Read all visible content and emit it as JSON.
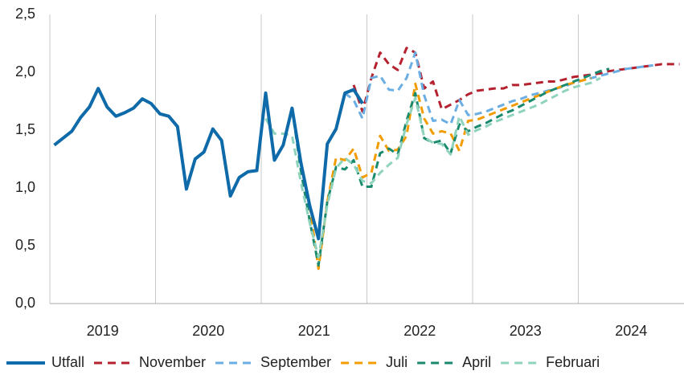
{
  "chart_data": {
    "type": "line",
    "x": [
      2019.042,
      2019.125,
      2019.208,
      2019.292,
      2019.375,
      2019.458,
      2019.542,
      2019.625,
      2019.708,
      2019.792,
      2019.875,
      2019.958,
      2020.042,
      2020.125,
      2020.208,
      2020.292,
      2020.375,
      2020.458,
      2020.542,
      2020.625,
      2020.708,
      2020.792,
      2020.875,
      2020.958,
      2021.042,
      2021.125,
      2021.208,
      2021.292,
      2021.375,
      2021.458,
      2021.542,
      2021.625,
      2021.708,
      2021.792,
      2021.875,
      2021.958,
      2022.042,
      2022.125,
      2022.208,
      2022.292,
      2022.375,
      2022.458,
      2022.542,
      2022.625,
      2022.708,
      2022.792,
      2022.875,
      2022.958,
      2023.042,
      2023.125,
      2023.208,
      2023.292,
      2023.375,
      2023.458,
      2023.542,
      2023.625,
      2023.708,
      2023.792,
      2023.875,
      2023.958,
      2024.042,
      2024.125,
      2024.208,
      2024.292,
      2024.375,
      2024.458,
      2024.542,
      2024.625,
      2024.708,
      2024.792,
      2024.875,
      2024.958
    ],
    "xlim": [
      2019,
      2025
    ],
    "xticks": [
      {
        "value": 2019.5,
        "label": "2019"
      },
      {
        "value": 2020.5,
        "label": "2020"
      },
      {
        "value": 2021.5,
        "label": "2021"
      },
      {
        "value": 2022.5,
        "label": "2022"
      },
      {
        "value": 2023.5,
        "label": "2023"
      },
      {
        "value": 2024.5,
        "label": "2024"
      }
    ],
    "xgrid": [
      2019,
      2020,
      2021,
      2022,
      2023,
      2024
    ],
    "ylim": [
      0,
      2.5
    ],
    "yticks": [
      {
        "value": 0,
        "label": "0,0"
      },
      {
        "value": 0.5,
        "label": "0,5"
      },
      {
        "value": 1,
        "label": "1,0"
      },
      {
        "value": 1.5,
        "label": "1,5"
      },
      {
        "value": 2,
        "label": "2,0"
      },
      {
        "value": 2.5,
        "label": "2,5"
      }
    ],
    "legend": "bottom",
    "series": [
      {
        "name": "November",
        "color": "#b5212f",
        "dashed": true,
        "values": [
          null,
          null,
          null,
          null,
          null,
          null,
          null,
          null,
          null,
          null,
          null,
          null,
          null,
          null,
          null,
          null,
          null,
          null,
          null,
          null,
          null,
          null,
          null,
          null,
          null,
          null,
          null,
          null,
          null,
          null,
          null,
          null,
          null,
          null,
          1.89,
          1.66,
          1.95,
          2.17,
          2.07,
          2.02,
          2.21,
          2.17,
          1.86,
          1.92,
          1.68,
          1.72,
          1.76,
          1.81,
          1.84,
          1.85,
          1.86,
          1.86,
          1.89,
          1.89,
          1.9,
          1.91,
          1.92,
          1.92,
          1.94,
          1.96,
          1.97,
          1.98,
          1.99,
          2.01,
          2.02,
          2.03,
          2.04,
          2.05,
          2.06,
          2.07,
          2.07,
          2.07
        ]
      },
      {
        "name": "September",
        "color": "#6aaee3",
        "dashed": true,
        "values": [
          null,
          null,
          null,
          null,
          null,
          null,
          null,
          null,
          null,
          null,
          null,
          null,
          null,
          null,
          null,
          null,
          null,
          null,
          null,
          null,
          null,
          null,
          null,
          null,
          null,
          null,
          null,
          null,
          null,
          null,
          null,
          null,
          null,
          1.82,
          1.76,
          1.6,
          1.95,
          1.97,
          1.85,
          1.84,
          1.95,
          2.17,
          1.8,
          1.58,
          1.59,
          1.55,
          1.76,
          1.63,
          1.64,
          1.66,
          1.69,
          1.72,
          1.75,
          1.77,
          1.8,
          1.82,
          1.84,
          1.86,
          1.88,
          1.91,
          1.93,
          1.95,
          1.97,
          1.99,
          2.01,
          2.03,
          2.04,
          2.05,
          2.06,
          null,
          null,
          null
        ]
      },
      {
        "name": "Juli",
        "color": "#f29c00",
        "dashed": true,
        "values": [
          null,
          null,
          null,
          null,
          null,
          null,
          null,
          null,
          null,
          null,
          null,
          null,
          null,
          null,
          null,
          null,
          null,
          null,
          null,
          null,
          null,
          null,
          null,
          null,
          null,
          null,
          null,
          null,
          null,
          0.85,
          0.3,
          0.88,
          1.26,
          1.24,
          1.34,
          1.09,
          1.13,
          1.45,
          1.32,
          1.33,
          1.45,
          1.9,
          1.6,
          1.47,
          1.49,
          1.47,
          1.32,
          1.58,
          1.59,
          1.62,
          1.65,
          1.68,
          1.71,
          1.74,
          1.77,
          1.8,
          1.83,
          1.86,
          1.89,
          1.91,
          1.93,
          1.95,
          null,
          null,
          null,
          null,
          null,
          null,
          null,
          null,
          null,
          null
        ]
      },
      {
        "name": "April",
        "color": "#1a8a6e",
        "dashed": true,
        "values": [
          null,
          null,
          null,
          null,
          null,
          null,
          null,
          null,
          null,
          null,
          null,
          null,
          null,
          null,
          null,
          null,
          null,
          null,
          null,
          null,
          null,
          null,
          null,
          null,
          null,
          null,
          null,
          1.69,
          1.15,
          0.72,
          0.33,
          0.88,
          1.18,
          1.16,
          1.24,
          1.01,
          1.01,
          1.3,
          1.34,
          1.29,
          1.58,
          1.82,
          1.43,
          1.39,
          1.41,
          1.3,
          1.55,
          1.49,
          1.53,
          1.56,
          1.6,
          1.64,
          1.67,
          1.71,
          1.75,
          1.79,
          1.83,
          1.86,
          1.89,
          1.92,
          1.95,
          1.98,
          2.01,
          2.03,
          null,
          null,
          null,
          null,
          null,
          null,
          null,
          null
        ]
      },
      {
        "name": "Februari",
        "color": "#8fd3bd",
        "dashed": true,
        "values": [
          null,
          null,
          null,
          null,
          null,
          null,
          null,
          null,
          null,
          null,
          null,
          null,
          null,
          null,
          null,
          null,
          null,
          null,
          null,
          null,
          null,
          null,
          null,
          null,
          1.6,
          1.47,
          1.47,
          1.45,
          1.05,
          0.7,
          0.4,
          0.85,
          1.17,
          1.26,
          1.2,
          1.06,
          1.04,
          1.13,
          1.2,
          1.26,
          1.55,
          1.78,
          1.44,
          1.39,
          1.38,
          1.29,
          1.62,
          1.46,
          1.5,
          1.53,
          1.57,
          1.6,
          1.63,
          1.66,
          1.69,
          1.72,
          1.76,
          1.8,
          1.84,
          1.87,
          1.89,
          1.91,
          1.95,
          null,
          null,
          null,
          null,
          null,
          null,
          null,
          null,
          null
        ]
      },
      {
        "name": "Utfall",
        "color": "#0e6aa8",
        "dashed": false,
        "values": [
          1.37,
          1.43,
          1.49,
          1.61,
          1.7,
          1.86,
          1.7,
          1.62,
          1.65,
          1.69,
          1.77,
          1.73,
          1.64,
          1.62,
          1.53,
          0.99,
          1.25,
          1.31,
          1.51,
          1.41,
          0.93,
          1.09,
          1.14,
          1.15,
          1.82,
          1.24,
          1.37,
          1.69,
          1.22,
          0.85,
          0.56,
          1.38,
          1.51,
          1.82,
          1.85,
          1.73,
          null,
          null,
          null,
          null,
          null,
          null,
          null,
          null,
          null,
          null,
          null,
          null,
          null,
          null,
          null,
          null,
          null,
          null,
          null,
          null,
          null,
          null,
          null,
          null,
          null,
          null,
          null,
          null,
          null,
          null,
          null,
          null,
          null,
          null,
          null,
          null
        ]
      }
    ],
    "legend_order": [
      5,
      0,
      1,
      2,
      3,
      4
    ]
  }
}
